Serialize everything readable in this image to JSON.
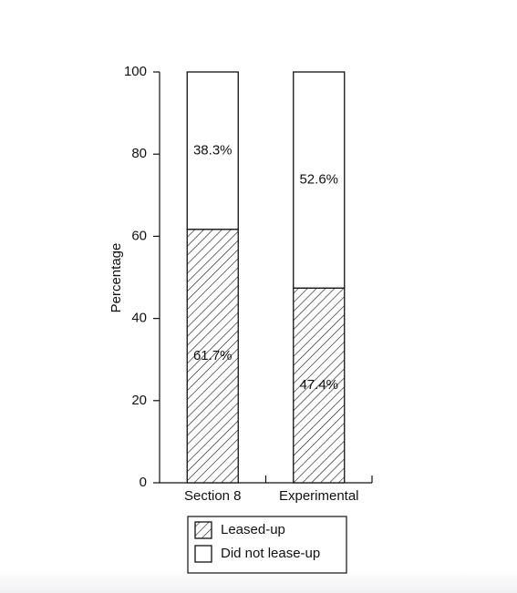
{
  "chart_data": {
    "type": "stacked-bar",
    "y_label": "Percentage",
    "categories": [
      "Section 8",
      "Experimental"
    ],
    "series": [
      {
        "name": "Leased-up",
        "color": "#000000",
        "pattern": "hatch",
        "values": [
          61.7,
          47.4
        ],
        "value_labels": [
          "61.7%",
          "47.4%"
        ]
      },
      {
        "name": "Did not lease-up",
        "color": "#ffffff",
        "pattern": "solid",
        "values": [
          38.3,
          52.6
        ],
        "value_labels": [
          "38.3%",
          "52.6%"
        ]
      }
    ],
    "ylim": [
      0,
      100
    ],
    "yticks": [
      0,
      20,
      40,
      60,
      80,
      100
    ],
    "legend": "bottom"
  }
}
